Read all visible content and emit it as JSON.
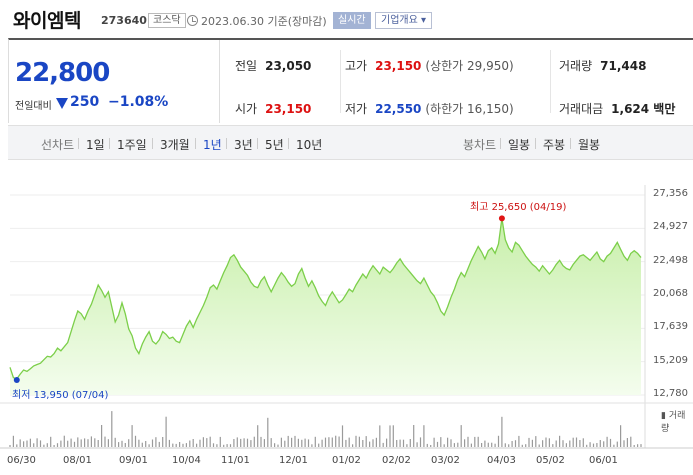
{
  "header": {
    "name": "와이엠텍",
    "code": "273640",
    "market": "코스닥",
    "date": "2023.06.30 기준(장마감)",
    "realtime_label": "실시간",
    "overview_label": "기업개요 ▾"
  },
  "summary": {
    "price": "22,800",
    "change_label": "전일대비",
    "change_value": "250",
    "change_pct": "−1.08%",
    "prev_label": "전일",
    "prev_value": "23,050",
    "high_label": "고가",
    "high_value": "23,150",
    "upper_label": "(상한가",
    "upper_value": "29,950)",
    "volume_label": "거래량",
    "volume_value": "71,448",
    "open_label": "시가",
    "open_value": "23,150",
    "low_label": "저가",
    "low_value": "22,550",
    "lower_label": "(하한가",
    "lower_value": "16,150)",
    "amount_label": "거래대금",
    "amount_value": "1,624 백만"
  },
  "tabs": {
    "line_label": "선차트",
    "periods": [
      "1일",
      "1주일",
      "3개월",
      "1년",
      "3년",
      "5년",
      "10년"
    ],
    "active_period": "1년",
    "candle_label": "봉차트",
    "candles": [
      "일봉",
      "주봉",
      "월봉"
    ]
  },
  "colors": {
    "up": "#dd1111",
    "down": "#1a46c4",
    "line": "#7ccf4a",
    "fill_top": "#c8efaa",
    "fill_bottom": "#f4fdee"
  },
  "chart_data": {
    "type": "area",
    "ylim": [
      12780,
      27356
    ],
    "yticks": [
      "27,356",
      "24,927",
      "22,498",
      "20,068",
      "17,639",
      "15,209",
      "12,780"
    ],
    "x_tick_labels": [
      "06/30",
      "08/01",
      "09/01",
      "10/04",
      "11/01",
      "12/01",
      "01/02",
      "02/02",
      "03/02",
      "04/03",
      "05/02",
      "06/01"
    ],
    "high_annotation": "최고 25,650 (04/19)",
    "low_annotation": "최저 13,950 (07/04)",
    "volume_label": "거래량",
    "values": [
      14800,
      14050,
      13950,
      14300,
      14600,
      14500,
      14700,
      14900,
      15000,
      15100,
      15350,
      15600,
      15550,
      15800,
      16200,
      16000,
      16300,
      16600,
      17400,
      18200,
      18900,
      18700,
      18300,
      18900,
      19400,
      20100,
      20800,
      20400,
      19900,
      20300,
      19200,
      18100,
      18600,
      19500,
      18700,
      17600,
      17100,
      16200,
      15800,
      16500,
      17000,
      17400,
      16700,
      16500,
      16800,
      17400,
      17200,
      16900,
      17000,
      16700,
      16600,
      17200,
      17800,
      18200,
      17700,
      18300,
      18800,
      19300,
      19900,
      20600,
      20800,
      20500,
      21100,
      21700,
      22200,
      22800,
      23000,
      22600,
      22100,
      21800,
      21500,
      21000,
      20700,
      20600,
      21100,
      21400,
      20800,
      20300,
      20800,
      21300,
      21700,
      21400,
      21000,
      20700,
      20900,
      21600,
      22000,
      21300,
      20700,
      21100,
      20600,
      20000,
      19600,
      19300,
      19900,
      20300,
      19900,
      19500,
      19700,
      20100,
      20500,
      20300,
      20800,
      21200,
      21600,
      21300,
      21800,
      22200,
      21900,
      21600,
      22100,
      21900,
      21700,
      22000,
      22400,
      22700,
      22300,
      22000,
      21700,
      21400,
      21100,
      20900,
      21300,
      20800,
      20300,
      20000,
      19500,
      18900,
      18600,
      19200,
      19900,
      20500,
      21200,
      21700,
      21400,
      22000,
      22600,
      23100,
      23600,
      23200,
      22700,
      23300,
      23500,
      23100,
      23800,
      25650,
      24100,
      23500,
      23200,
      23900,
      23700,
      23300,
      22900,
      22600,
      22300,
      22100,
      21800,
      22200,
      21900,
      21600,
      21900,
      22300,
      22600,
      22200,
      22000,
      21900,
      22300,
      22600,
      22900,
      23000,
      22800,
      22600,
      22900,
      23200,
      22700,
      22500,
      22900,
      23100,
      23500,
      23900,
      23400,
      22900,
      22600,
      23100,
      23300,
      23100,
      22800
    ]
  }
}
